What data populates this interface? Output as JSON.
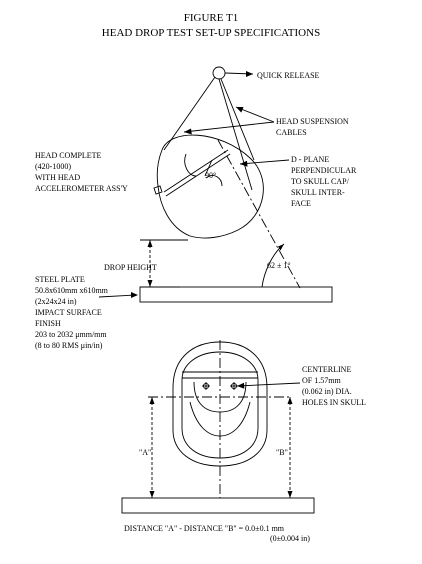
{
  "figure": {
    "title": "FIGURE  T1",
    "subtitle": "HEAD DROP TEST SET-UP SPECIFICATIONS"
  },
  "labels": {
    "quick_release": "QUICK RELEASE",
    "suspension_1": "HEAD SUSPENSION",
    "suspension_2": "CABLES",
    "head_1": "HEAD COMPLETE",
    "head_2": "(420-1000)",
    "head_3": "WITH HEAD",
    "head_4": "ACCELEROMETER ASS'Y",
    "dplane_1": "D - PLANE",
    "dplane_2": "PERPENDICULAR",
    "dplane_3": "TO SKULL CAP/",
    "dplane_4": "SKULL  INTER-",
    "dplane_5": "FACE",
    "angle_90": "90°",
    "drop_height": "DROP HEIGHT",
    "angle_62": "62 ± 1°",
    "steel_1": "STEEL  PLATE",
    "steel_2": "50.8x610mm x610mm",
    "steel_3": "(2x24x24 in)",
    "steel_4": "IMPACT SURFACE",
    "steel_5": "FINISH",
    "steel_6": "203 to 2032 μmm/mm",
    "steel_7": "(8 to 80 RMS μin/in)",
    "centerline_1": "CENTERLINE",
    "centerline_2": "OF 1.57mm",
    "centerline_3": "(0.062 in) DIA.",
    "centerline_4": "HOLES IN SKULL",
    "dim_a": "\"A\"",
    "dim_b": "\"B\"",
    "distance_1": "DISTANCE \"A\" - DISTANCE \"B\" = 0.0±0.1 mm",
    "distance_2": "(0±0.004 in)"
  }
}
